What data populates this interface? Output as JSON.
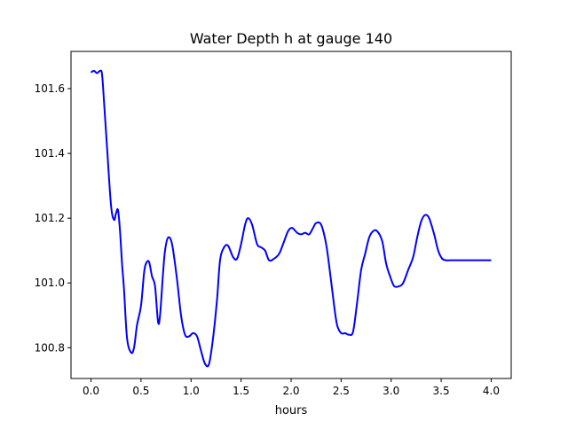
{
  "chart_data": {
    "type": "line",
    "title": "Water Depth h at gauge 140",
    "xlabel": "hours",
    "ylabel": "",
    "xlim": [
      -0.2,
      4.2
    ],
    "ylim": [
      100.705,
      101.715
    ],
    "xticks": [
      0.0,
      0.5,
      1.0,
      1.5,
      2.0,
      2.5,
      3.0,
      3.5,
      4.0
    ],
    "xtick_labels": [
      "0.0",
      "0.5",
      "1.0",
      "1.5",
      "2.0",
      "2.5",
      "3.0",
      "3.5",
      "4.0"
    ],
    "yticks": [
      100.8,
      101.0,
      101.2,
      101.4,
      101.6
    ],
    "ytick_labels": [
      "100.8",
      "101.0",
      "101.2",
      "101.4",
      "101.6"
    ],
    "grid": false,
    "series": [
      {
        "color": "#0000ff",
        "x": [
          0.0,
          0.03,
          0.06,
          0.09,
          0.11,
          0.13,
          0.16,
          0.2,
          0.23,
          0.25,
          0.27,
          0.29,
          0.31,
          0.33,
          0.36,
          0.4,
          0.43,
          0.46,
          0.5,
          0.53,
          0.55,
          0.58,
          0.61,
          0.64,
          0.67,
          0.69,
          0.72,
          0.74,
          0.77,
          0.81,
          0.86,
          0.9,
          0.94,
          0.98,
          1.02,
          1.06,
          1.1,
          1.14,
          1.18,
          1.22,
          1.26,
          1.29,
          1.33,
          1.37,
          1.42,
          1.46,
          1.5,
          1.54,
          1.57,
          1.61,
          1.66,
          1.7,
          1.74,
          1.78,
          1.83,
          1.88,
          1.92,
          1.97,
          2.01,
          2.06,
          2.1,
          2.14,
          2.18,
          2.22,
          2.25,
          2.3,
          2.35,
          2.39,
          2.43,
          2.46,
          2.5,
          2.54,
          2.58,
          2.62,
          2.66,
          2.7,
          2.74,
          2.78,
          2.82,
          2.86,
          2.91,
          2.95,
          2.99,
          3.03,
          3.08,
          3.12,
          3.17,
          3.22,
          3.26,
          3.3,
          3.34,
          3.38,
          3.43,
          3.47,
          3.51,
          3.55,
          3.59,
          3.63,
          3.67,
          3.71,
          3.75,
          3.79,
          3.82,
          3.86,
          3.9,
          3.94,
          3.98,
          4.0
        ],
        "y": [
          101.65,
          101.655,
          101.648,
          101.655,
          101.645,
          101.56,
          101.42,
          101.24,
          101.195,
          101.215,
          101.225,
          101.16,
          101.06,
          100.98,
          100.83,
          100.785,
          100.8,
          100.87,
          100.93,
          101.03,
          101.06,
          101.065,
          101.02,
          100.99,
          100.88,
          100.9,
          101.03,
          101.1,
          101.14,
          101.12,
          101.01,
          100.9,
          100.84,
          100.835,
          100.845,
          100.835,
          100.79,
          100.75,
          100.75,
          100.83,
          100.95,
          101.07,
          101.11,
          101.115,
          101.08,
          101.075,
          101.12,
          101.18,
          101.2,
          101.18,
          101.12,
          101.11,
          101.1,
          101.07,
          101.075,
          101.09,
          101.12,
          101.16,
          101.17,
          101.155,
          101.15,
          101.155,
          101.15,
          101.17,
          101.185,
          101.18,
          101.12,
          101.03,
          100.93,
          100.87,
          100.845,
          100.845,
          100.84,
          100.85,
          100.94,
          101.04,
          101.09,
          101.14,
          101.16,
          101.16,
          101.13,
          101.06,
          101.02,
          100.99,
          100.99,
          101.0,
          101.04,
          101.08,
          101.14,
          101.19,
          101.21,
          101.2,
          101.15,
          101.1,
          101.075,
          101.07,
          101.07,
          101.07,
          101.07,
          101.07,
          101.07,
          101.07,
          101.07,
          101.07,
          101.07,
          101.07,
          101.07,
          101.07
        ]
      }
    ]
  }
}
